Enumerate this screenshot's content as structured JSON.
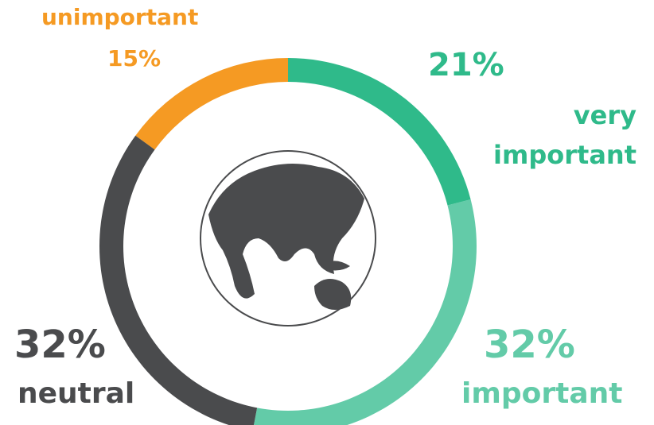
{
  "chart_data": {
    "type": "donut",
    "categories": [
      "very important",
      "important",
      "neutral",
      "unimportant"
    ],
    "values": [
      21,
      32,
      32,
      15
    ],
    "value_labels": [
      "21%",
      "32%",
      "32%",
      "15%"
    ],
    "colors": [
      "#2fba8a",
      "#63cba8",
      "#4a4b4d",
      "#f59a23"
    ]
  }
}
